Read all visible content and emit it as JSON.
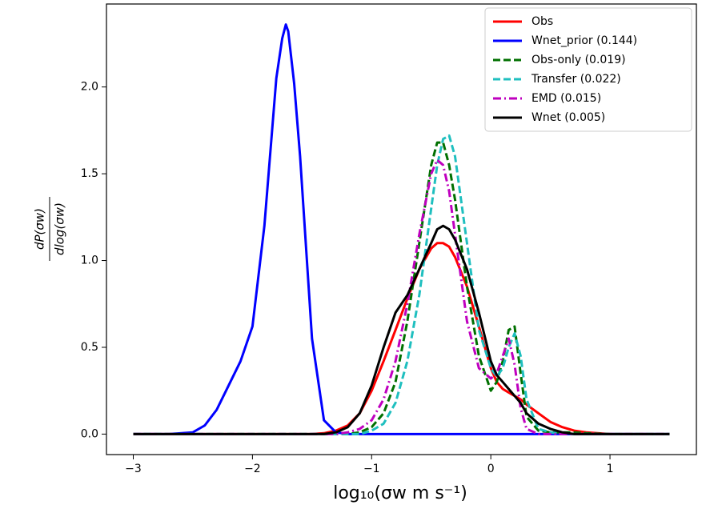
{
  "chart_data": {
    "type": "line",
    "x_label": "log₁₀(σw m s⁻¹)",
    "y_label": {
      "numerator": "dP(σw)",
      "denominator": "dlog(σw)"
    },
    "x": [
      -3,
      -2.7,
      -2.5,
      -2.4,
      -2.3,
      -2.2,
      -2.1,
      -2.0,
      -1.9,
      -1.8,
      -1.75,
      -1.72,
      -1.7,
      -1.65,
      -1.6,
      -1.5,
      -1.4,
      -1.3,
      -1.2,
      -1.1,
      -1.0,
      -0.9,
      -0.8,
      -0.7,
      -0.6,
      -0.5,
      -0.45,
      -0.4,
      -0.35,
      -0.3,
      -0.2,
      -0.1,
      0,
      0.05,
      0.1,
      0.15,
      0.2,
      0.25,
      0.3,
      0.4,
      0.5,
      0.6,
      0.7,
      0.8,
      1.0,
      1.5
    ],
    "series": [
      {
        "name": "Obs",
        "color": "#ff0000",
        "linestyle": "solid",
        "values": [
          0,
          0,
          0,
          0,
          0,
          0,
          0,
          0,
          0,
          0,
          0,
          0,
          0,
          0,
          0,
          0,
          0.005,
          0.02,
          0.05,
          0.12,
          0.25,
          0.42,
          0.6,
          0.78,
          0.95,
          1.07,
          1.1,
          1.1,
          1.08,
          1.02,
          0.85,
          0.62,
          0.38,
          0.3,
          0.26,
          0.24,
          0.22,
          0.2,
          0.17,
          0.12,
          0.07,
          0.04,
          0.02,
          0.01,
          0,
          0
        ]
      },
      {
        "name": "Wnet_prior (0.144)",
        "color": "#0000ff",
        "linestyle": "solid",
        "values": [
          0,
          0,
          0.01,
          0.05,
          0.14,
          0.28,
          0.42,
          0.62,
          1.2,
          2.05,
          2.28,
          2.36,
          2.32,
          2.02,
          1.6,
          0.55,
          0.08,
          0.01,
          0,
          0,
          0,
          0,
          0,
          0,
          0,
          0,
          0,
          0,
          0,
          0,
          0,
          0,
          0,
          0,
          0,
          0,
          0,
          0,
          0,
          0,
          0,
          0,
          0,
          0,
          0,
          0
        ]
      },
      {
        "name": "Obs-only (0.019)",
        "color": "#007000",
        "linestyle": "dashed",
        "values": [
          0,
          0,
          0,
          0,
          0,
          0,
          0,
          0,
          0,
          0,
          0,
          0,
          0,
          0,
          0,
          0,
          0,
          0,
          0,
          0.01,
          0.04,
          0.12,
          0.3,
          0.65,
          1.1,
          1.55,
          1.68,
          1.68,
          1.55,
          1.35,
          0.85,
          0.45,
          0.25,
          0.3,
          0.42,
          0.6,
          0.62,
          0.35,
          0.1,
          0.02,
          0.01,
          0.01,
          0.01,
          0.005,
          0,
          0
        ]
      },
      {
        "name": "Transfer (0.022)",
        "color": "#1fbfbf",
        "linestyle": "dashed",
        "values": [
          0,
          0,
          0,
          0,
          0,
          0,
          0,
          0,
          0,
          0,
          0,
          0,
          0,
          0,
          0,
          0,
          0,
          0,
          0,
          0,
          0.02,
          0.06,
          0.18,
          0.42,
          0.8,
          1.3,
          1.55,
          1.7,
          1.72,
          1.6,
          1.1,
          0.6,
          0.38,
          0.33,
          0.38,
          0.5,
          0.58,
          0.45,
          0.2,
          0.03,
          0.01,
          0,
          0,
          0,
          0,
          0
        ]
      },
      {
        "name": "EMD (0.015)",
        "color": "#bf00bf",
        "linestyle": "dashdot",
        "values": [
          0,
          0,
          0,
          0,
          0,
          0,
          0,
          0,
          0,
          0,
          0,
          0,
          0,
          0,
          0,
          0,
          0,
          0,
          0.01,
          0.03,
          0.08,
          0.2,
          0.42,
          0.75,
          1.15,
          1.5,
          1.58,
          1.55,
          1.4,
          1.15,
          0.65,
          0.38,
          0.32,
          0.35,
          0.45,
          0.55,
          0.4,
          0.15,
          0.03,
          0,
          0,
          0,
          0,
          0,
          0,
          0
        ]
      },
      {
        "name": "Wnet (0.005)",
        "color": "#000000",
        "linestyle": "solid",
        "values": [
          0,
          0,
          0,
          0,
          0,
          0,
          0,
          0,
          0,
          0,
          0,
          0,
          0,
          0,
          0,
          0,
          0,
          0.01,
          0.04,
          0.12,
          0.28,
          0.5,
          0.7,
          0.8,
          0.95,
          1.1,
          1.18,
          1.2,
          1.18,
          1.12,
          0.95,
          0.7,
          0.42,
          0.34,
          0.3,
          0.26,
          0.22,
          0.18,
          0.12,
          0.06,
          0.03,
          0.01,
          0,
          0,
          0,
          0
        ]
      }
    ],
    "xlim": [
      -3.225,
      1.725
    ],
    "ylim": [
      -0.118,
      2.478
    ],
    "xticks": [
      {
        "value": -3,
        "label": "−3"
      },
      {
        "value": -2,
        "label": "−2"
      },
      {
        "value": -1,
        "label": "−1"
      },
      {
        "value": 0,
        "label": "0"
      },
      {
        "value": 1,
        "label": "1"
      }
    ],
    "yticks": [
      {
        "value": 0,
        "label": "0.0"
      },
      0.5,
      {
        "value": 1,
        "label": "1.0"
      },
      1.5,
      {
        "value": 2,
        "label": "2.0"
      }
    ],
    "grid": false,
    "legend": "upper right"
  }
}
